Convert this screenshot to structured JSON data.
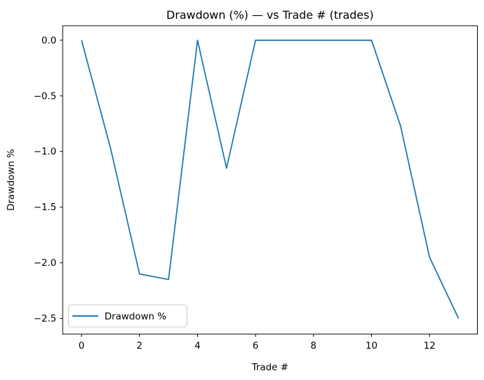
{
  "chart_data": {
    "type": "line",
    "title": "Drawdown (%) — vs Trade # (trades)",
    "xlabel": "Trade #",
    "ylabel": "Drawdown %",
    "x": [
      0,
      1,
      2,
      3,
      4,
      5,
      6,
      7,
      8,
      9,
      10,
      11,
      12,
      13
    ],
    "series": [
      {
        "name": "Drawdown %",
        "values": [
          0.0,
          -0.97,
          -2.1,
          -2.15,
          0.0,
          -1.15,
          0.0,
          0.0,
          0.0,
          0.0,
          0.0,
          -0.77,
          -1.95,
          -2.5
        ]
      }
    ],
    "xlim": [
      -0.65,
      13.65
    ],
    "ylim": [
      -2.64,
      0.13
    ],
    "xticks": [
      0,
      2,
      4,
      6,
      8,
      10,
      12
    ],
    "yticks": [
      0.0,
      -0.5,
      -1.0,
      -1.5,
      -2.0,
      -2.5
    ],
    "grid": false,
    "legend_position": "lower left",
    "legend_label": "Drawdown %",
    "line_color": "#1f77b4",
    "spine_color": "#000000",
    "legend_border_color": "#cccccc",
    "background_color": "#ffffff"
  }
}
